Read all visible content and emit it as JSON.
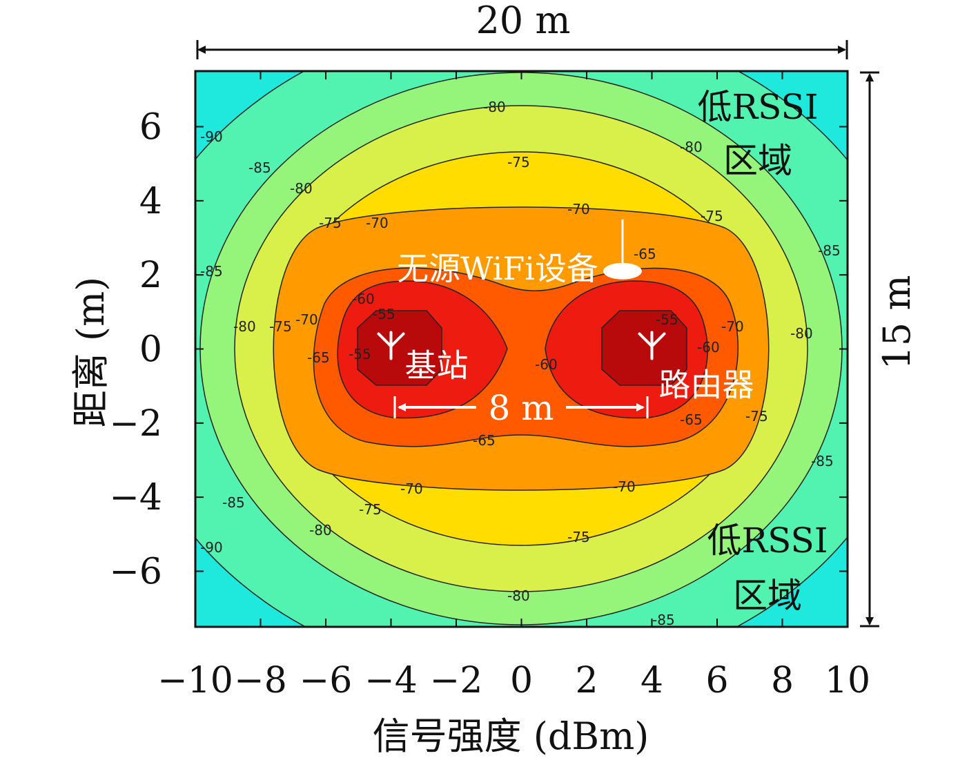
{
  "chart_data": {
    "type": "heatmap",
    "subtype": "filled-contour",
    "xlabel": "信号强度 (dBm)",
    "ylabel": "距离 (m)",
    "xlim": [
      -10,
      10
    ],
    "ylim": [
      -7.5,
      7.5
    ],
    "x_ticks": [
      "−10",
      "−8",
      "−6",
      "−4",
      "−2",
      "0",
      "2",
      "4",
      "6",
      "8",
      "10"
    ],
    "y_ticks": [
      "6",
      "4",
      "2",
      "0",
      "−2",
      "−4",
      "−6"
    ],
    "contour_levels": [
      -90,
      -85,
      -80,
      -75,
      -70,
      -65,
      -60,
      -55
    ],
    "contour_labels": [
      "-90",
      "-85",
      "-80",
      "-75",
      "-70",
      "-65",
      "-60",
      "-55"
    ],
    "colors": {
      "below_-90": "#1fe8dc",
      "-90_to_-85": "#52f2b0",
      "-85_to_-80": "#94f57a",
      "-80_to_-75": "#d9f04a",
      "-75_to_-70": "#ffdd00",
      "-70_to_-65": "#ff9a00",
      "-65_to_-60": "#ff5a00",
      "-60_to_-55": "#ee1c10",
      "above_-55": "#b80a0a"
    },
    "sources": [
      {
        "label": "基站",
        "x": -4,
        "y": 0
      },
      {
        "label": "路由器",
        "x": 4,
        "y": 0
      }
    ],
    "device": {
      "label": "无源WiFi设备",
      "x": 3.1,
      "y": 2.1
    },
    "grid": false
  },
  "annotations": {
    "width_dim": "20 m",
    "height_dim": "15 m",
    "separation_dim": "8 m",
    "low_rssi_top_line1": "低RSSI",
    "low_rssi_top_line2": "区域",
    "low_rssi_bottom_line1": "低RSSI",
    "low_rssi_bottom_line2": "区域"
  }
}
